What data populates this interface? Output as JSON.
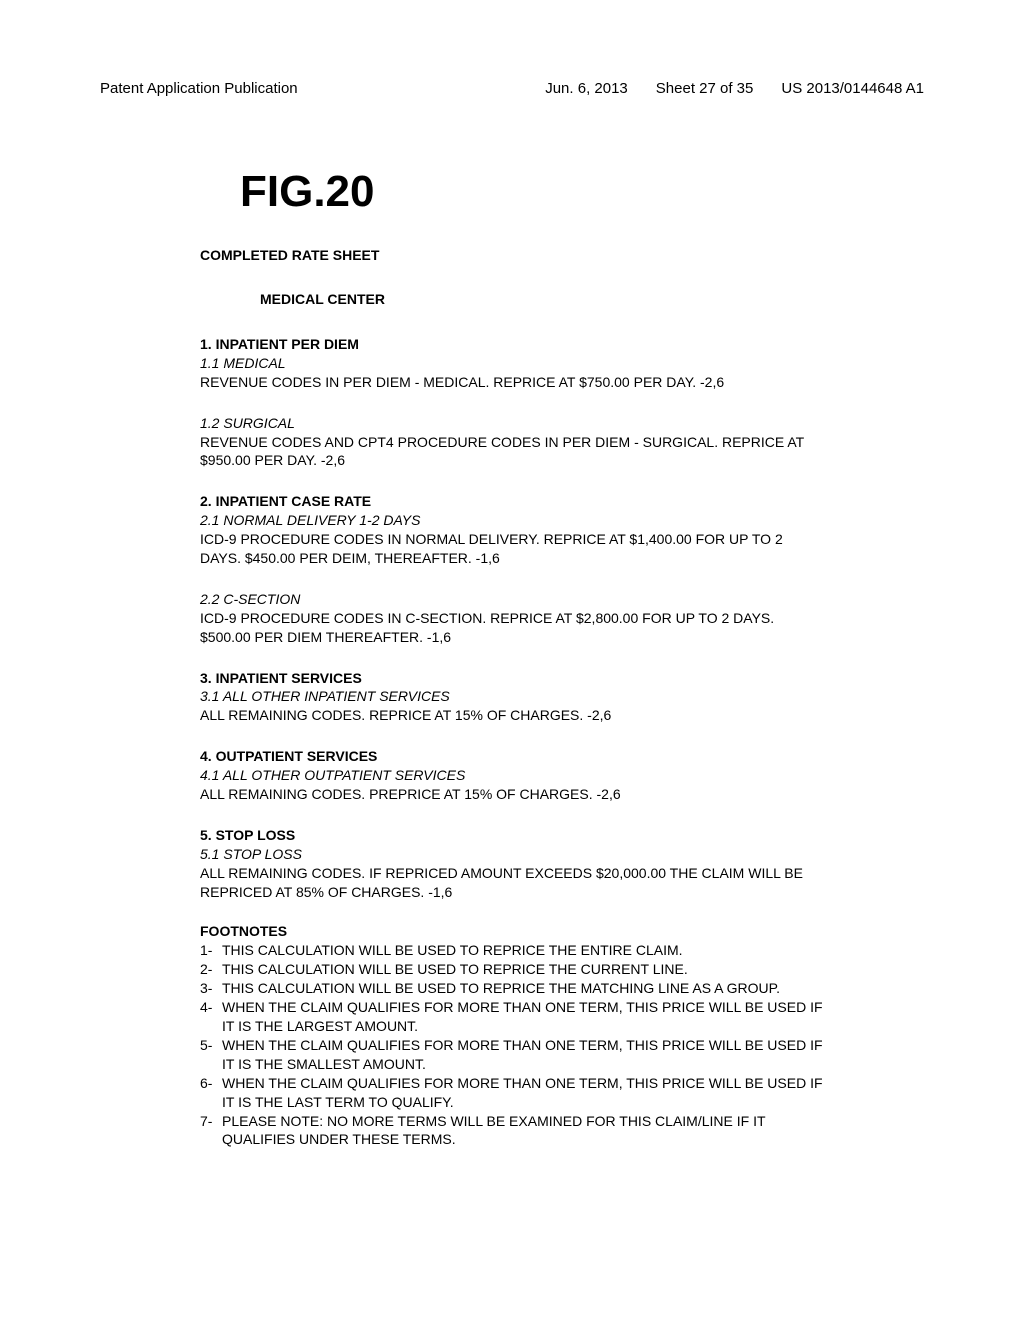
{
  "header": {
    "left": "Patent Application Publication",
    "date": "Jun. 6, 2013",
    "sheet": "Sheet 27 of 35",
    "pubno": "US 2013/0144648 A1"
  },
  "figure_label": "FIG.20",
  "rate_title": "COMPLETED RATE SHEET",
  "center_name": "MEDICAL CENTER",
  "sections": [
    {
      "heading": "1. INPATIENT PER DIEM",
      "items": [
        {
          "sub": "1.1 MEDICAL",
          "text": "REVENUE CODES IN PER DIEM - MEDICAL.  REPRICE AT $750.00 PER DAY. -2,6"
        },
        {
          "sub": "1.2 SURGICAL",
          "text": "REVENUE CODES AND CPT4 PROCEDURE CODES IN PER DIEM - SURGICAL. REPRICE AT $950.00 PER DAY. -2,6"
        }
      ]
    },
    {
      "heading": "2. INPATIENT CASE RATE",
      "items": [
        {
          "sub": "2.1 NORMAL DELIVERY 1-2 DAYS",
          "text": "ICD-9 PROCEDURE CODES IN NORMAL DELIVERY.  REPRICE AT $1,400.00 FOR UP TO 2 DAYS.  $450.00 PER DEIM, THEREAFTER. -1,6"
        },
        {
          "sub": "2.2 C-SECTION",
          "text": "ICD-9 PROCEDURE CODES IN C-SECTION.  REPRICE AT $2,800.00 FOR UP TO 2 DAYS.  $500.00 PER DIEM THEREAFTER. -1,6"
        }
      ]
    },
    {
      "heading": "3. INPATIENT SERVICES",
      "items": [
        {
          "sub": "3.1 ALL OTHER INPATIENT SERVICES",
          "text": "ALL REMAINING CODES.  REPRICE AT 15% OF CHARGES. -2,6"
        }
      ]
    },
    {
      "heading": "4. OUTPATIENT SERVICES",
      "items": [
        {
          "sub": "4.1 ALL OTHER OUTPATIENT SERVICES",
          "text": "ALL REMAINING CODES.  PREPRICE AT 15% OF CHARGES. -2,6"
        }
      ]
    },
    {
      "heading": "5. STOP LOSS",
      "items": [
        {
          "sub": "5.1 STOP LOSS",
          "text": "ALL REMAINING CODES.  IF REPRICED AMOUNT EXCEEDS $20,000.00 THE CLAIM WILL BE REPRICED AT 85% OF CHARGES. -1,6"
        }
      ]
    }
  ],
  "footnotes_heading": "FOOTNOTES",
  "footnotes": [
    {
      "n": "1-",
      "t": "THIS CALCULATION WILL BE USED TO REPRICE THE ENTIRE CLAIM."
    },
    {
      "n": "2-",
      "t": "THIS CALCULATION WILL BE USED TO REPRICE THE CURRENT LINE."
    },
    {
      "n": "3-",
      "t": "THIS CALCULATION WILL BE USED TO REPRICE THE MATCHING LINE AS A GROUP."
    },
    {
      "n": "4-",
      "t": "WHEN THE CLAIM QUALIFIES FOR MORE THAN ONE TERM, THIS PRICE WILL BE USED IF IT IS THE LARGEST AMOUNT."
    },
    {
      "n": "5-",
      "t": "WHEN THE CLAIM QUALIFIES FOR MORE THAN ONE TERM, THIS PRICE WILL BE USED IF IT IS THE SMALLEST AMOUNT."
    },
    {
      "n": "6-",
      "t": "WHEN THE CLAIM QUALIFIES FOR MORE THAN ONE TERM, THIS PRICE WILL BE USED IF IT IS THE LAST TERM TO QUALIFY."
    },
    {
      "n": "7-",
      "t": "PLEASE NOTE: NO MORE TERMS WILL BE EXAMINED FOR THIS CLAIM/LINE IF IT QUALIFIES UNDER THESE TERMS."
    }
  ]
}
